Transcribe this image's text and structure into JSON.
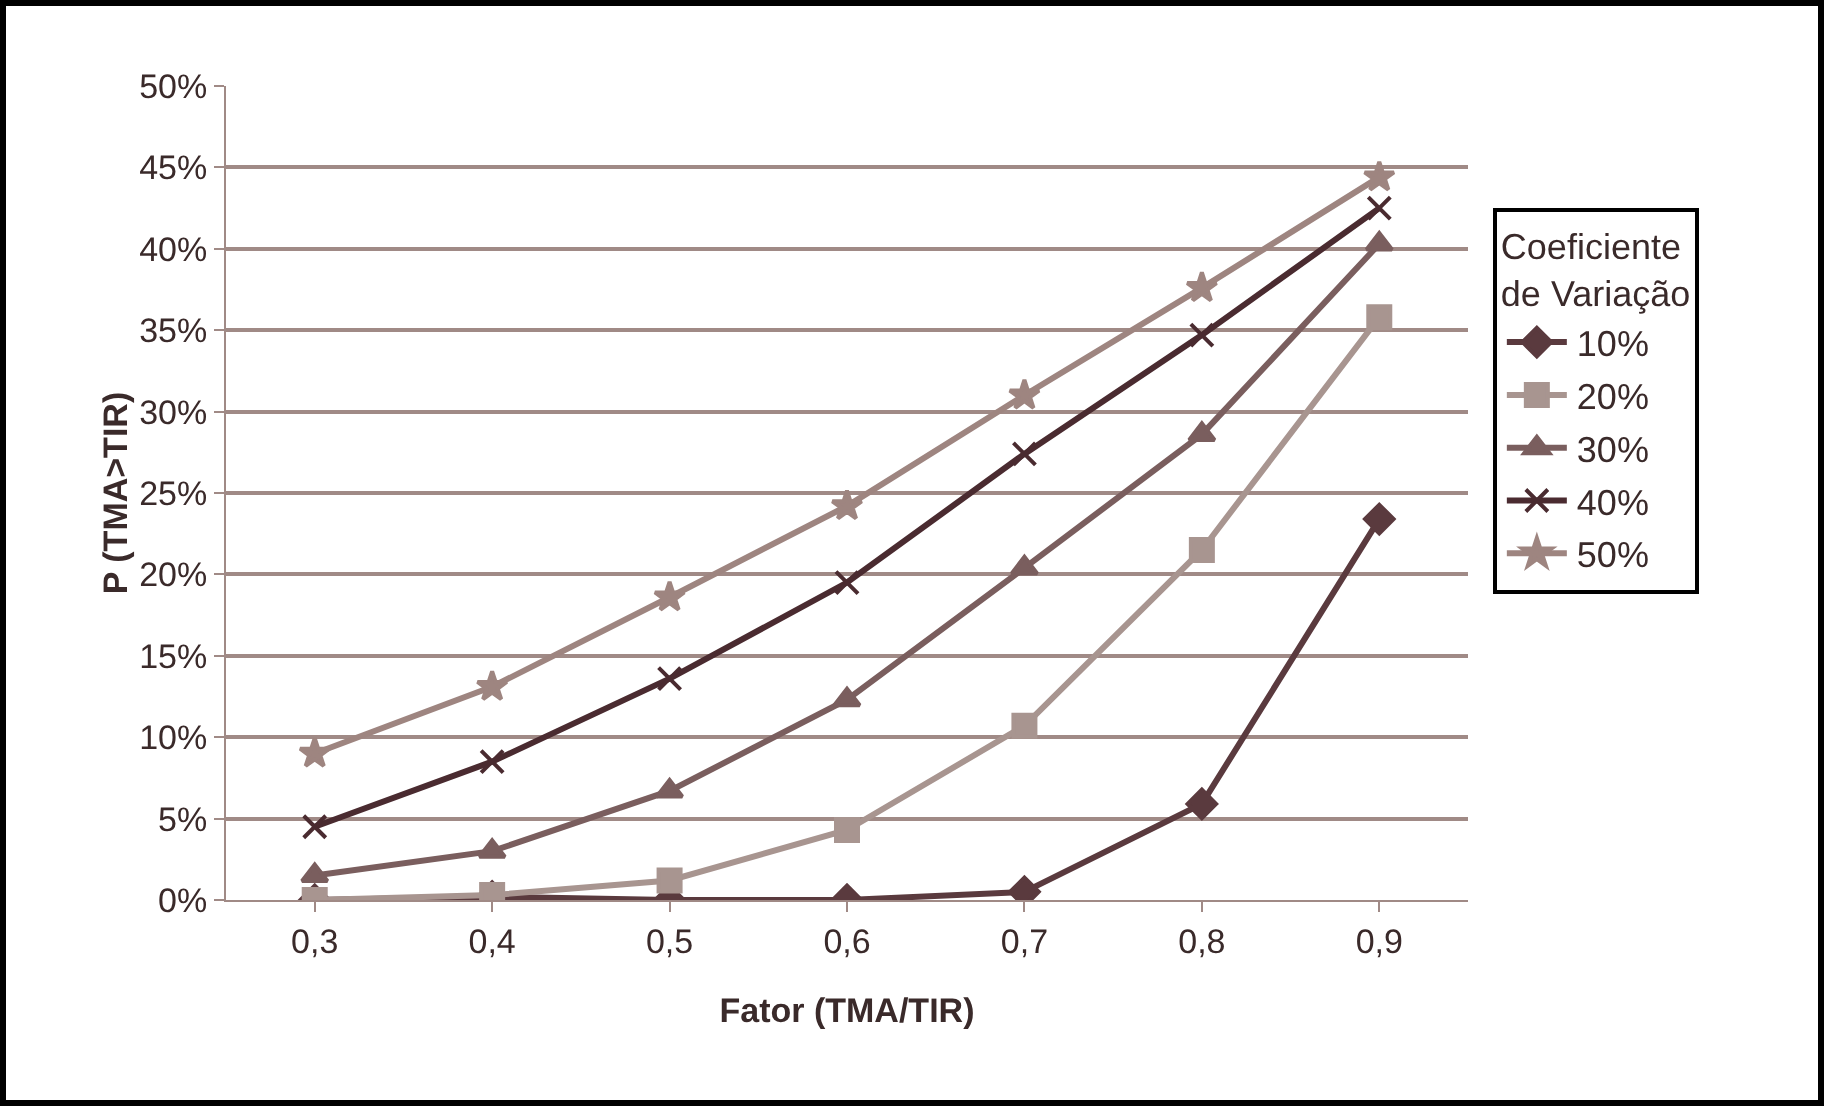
{
  "chart_data": {
    "type": "line",
    "xlabel": "Fator (TMA/TIR)",
    "ylabel": "P (TMA>TIR)",
    "legend_title": "Coeficiente de Variação",
    "categories": [
      "0,3",
      "0,4",
      "0,5",
      "0,6",
      "0,7",
      "0,8",
      "0,9"
    ],
    "ylim": [
      0,
      50
    ],
    "yticks": [
      {
        "value": 0,
        "label": "0%"
      },
      {
        "value": 5,
        "label": "5%"
      },
      {
        "value": 10,
        "label": "10%"
      },
      {
        "value": 15,
        "label": "15%"
      },
      {
        "value": 20,
        "label": "20%"
      },
      {
        "value": 25,
        "label": "25%"
      },
      {
        "value": 30,
        "label": "30%"
      },
      {
        "value": 35,
        "label": "35%"
      },
      {
        "value": 40,
        "label": "40%"
      },
      {
        "value": 45,
        "label": "45%"
      },
      {
        "value": 50,
        "label": "50%"
      }
    ],
    "grid": "y",
    "legend": "right",
    "series": [
      {
        "name": "10%",
        "color": "#5a3a3e",
        "marker": "diamond",
        "values": [
          0,
          0.2,
          0,
          0,
          0.5,
          5.9,
          23.4
        ]
      },
      {
        "name": "20%",
        "color": "#a89590",
        "marker": "square",
        "values": [
          0,
          0.3,
          1.2,
          4.3,
          10.7,
          21.5,
          35.8
        ]
      },
      {
        "name": "30%",
        "color": "#7a5e5e",
        "marker": "triangle",
        "values": [
          1.5,
          3,
          6.7,
          12.3,
          20.4,
          28.6,
          40.3
        ]
      },
      {
        "name": "40%",
        "color": "#4a2b30",
        "marker": "cross",
        "values": [
          4.5,
          8.5,
          13.6,
          19.5,
          27.4,
          34.7,
          42.5
        ]
      },
      {
        "name": "50%",
        "color": "#9e8580",
        "marker": "star",
        "values": [
          9,
          13.1,
          18.6,
          24.2,
          31,
          37.6,
          44.4
        ]
      }
    ]
  }
}
